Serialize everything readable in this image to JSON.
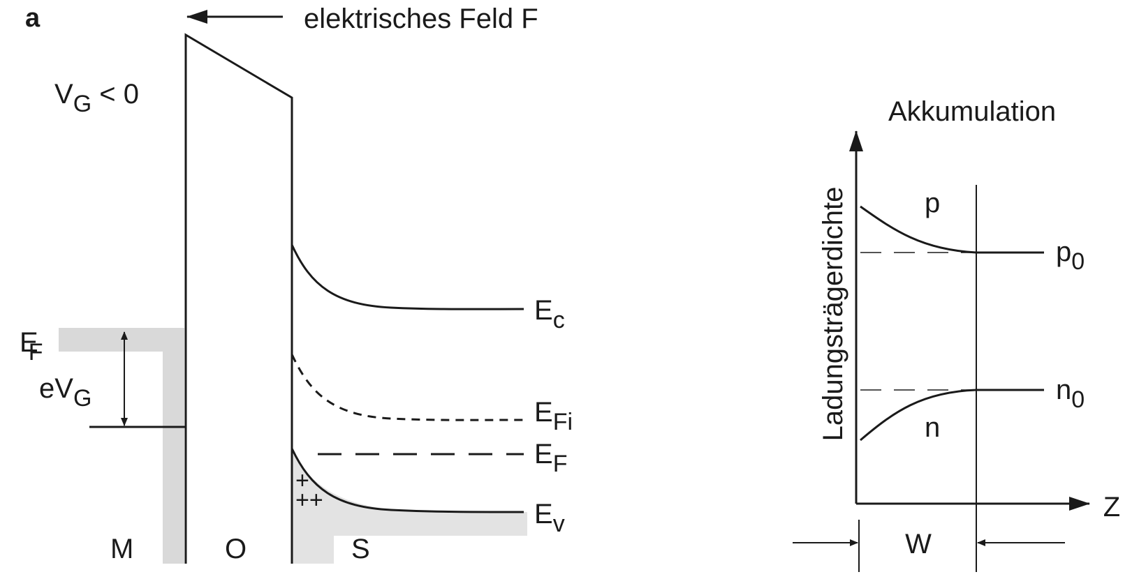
{
  "panel_label": "a",
  "field_label": "elektrisches Feld F",
  "gate_voltage": {
    "main": "V",
    "sub": "G",
    "rest": " < 0"
  },
  "metal_fermi": {
    "main": "E",
    "sub": "F"
  },
  "gate_energy": {
    "main": "eV",
    "sub": "G"
  },
  "bands": {
    "ec": {
      "main": "E",
      "sub": "c"
    },
    "efi": {
      "main": "E",
      "sub": "Fi"
    },
    "ef": {
      "main": "E",
      "sub": "F"
    },
    "ev": {
      "main": "E",
      "sub": "v"
    }
  },
  "holes_row1": "+",
  "holes_row2": "++",
  "regions": {
    "metal": "M",
    "oxide": "O",
    "semiconductor": "S"
  },
  "right_plot": {
    "title": "Akkumulation",
    "y_axis": "Ladungsträgerdichte",
    "x_axis": "Z",
    "width_label": "W",
    "curve_p": "p",
    "curve_n": "n",
    "p0": {
      "main": "p",
      "sub": "0"
    },
    "n0": {
      "main": "n",
      "sub": "0"
    }
  },
  "colors": {
    "line": "#1a1a1a",
    "shading": "#d9d9d9",
    "background": "#ffffff"
  }
}
